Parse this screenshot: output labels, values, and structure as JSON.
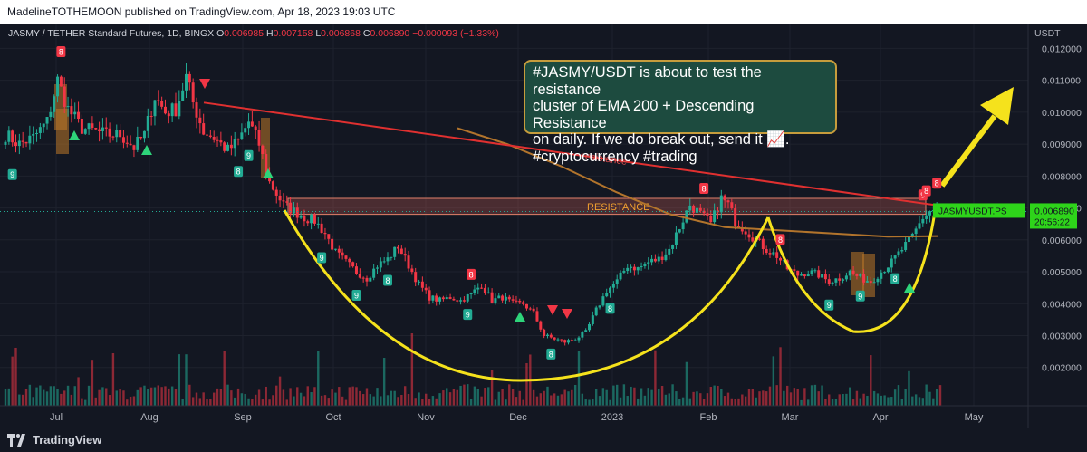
{
  "header": {
    "publisher_line": "MadelineTOTHEMOON published on TradingView.com, Apr 18, 2023 19:03 UTC"
  },
  "chart_data": {
    "type": "candlestick",
    "symbol_line": {
      "name": "JASMY / TETHER Standard Futures, 1D, BINGX",
      "o_label": "O",
      "o_value": "0.006985",
      "h_label": "H",
      "h_value": "0.007158",
      "l_label": "L",
      "l_value": "0.006868",
      "c_label": "C",
      "c_value": "0.006890",
      "change": "−0.000093 (−1.33%)"
    },
    "currency_label": "USDT",
    "y_ticks": [
      0.012,
      0.011,
      0.01,
      0.009,
      0.008,
      0.007,
      0.006,
      0.005,
      0.004,
      0.003,
      0.002
    ],
    "y_tick_labels": [
      "0.012000",
      "0.011000",
      "0.010000",
      "0.009000",
      "0.008000",
      "0.007000",
      "0.006000",
      "0.005000",
      "0.004000",
      "0.003000",
      "0.002000"
    ],
    "ylim": [
      0.0008,
      0.01275
    ],
    "x_ticks": [
      "Jul",
      "Aug",
      "Sep",
      "Oct",
      "Nov",
      "Dec",
      "2023",
      "Feb",
      "Mar",
      "Apr",
      "May"
    ],
    "price_label": {
      "ticker": "JASMYUSDT.PS",
      "value": "0.006890",
      "countdown": "20:56:22"
    },
    "annotations": {
      "resistance_line_label": "resistance",
      "resistance_zone_label": "RESISTANCE",
      "callout": [
        "#JASMY/USDT is about to test the resistance",
        "cluster of EMA 200 + Descending Resistance",
        "on daily. If we do break out, send it 📈.",
        "#cryptocurrency #trading"
      ]
    },
    "resistance_zone": {
      "from": 0.0068,
      "to": 0.0073
    },
    "td_labels": [
      {
        "x_index": 16,
        "text": "8",
        "side": "above",
        "color": "#f23645"
      },
      {
        "x_index": 2,
        "text": "9",
        "side": "below",
        "color": "#22ab94"
      },
      {
        "x_index": 67,
        "text": "8",
        "side": "below",
        "color": "#22ab94"
      },
      {
        "x_index": 70,
        "text": "9",
        "side": "below",
        "color": "#22ab94"
      },
      {
        "x_index": 91,
        "text": "9",
        "side": "below",
        "color": "#22ab94"
      },
      {
        "x_index": 101,
        "text": "9",
        "side": "below",
        "color": "#22ab94"
      },
      {
        "x_index": 110,
        "text": "8",
        "side": "below",
        "color": "#22ab94"
      },
      {
        "x_index": 133,
        "text": "9",
        "side": "below",
        "color": "#22ab94"
      },
      {
        "x_index": 134,
        "text": "8",
        "side": "above",
        "color": "#f23645"
      },
      {
        "x_index": 157,
        "text": "8",
        "side": "below",
        "color": "#22ab94"
      },
      {
        "x_index": 174,
        "text": "8",
        "side": "below",
        "color": "#22ab94"
      },
      {
        "x_index": 201,
        "text": "8",
        "side": "above",
        "color": "#f23645"
      },
      {
        "x_index": 223,
        "text": "8",
        "side": "above",
        "color": "#f23645"
      },
      {
        "x_index": 237,
        "text": "9",
        "side": "below",
        "color": "#22ab94"
      },
      {
        "x_index": 246,
        "text": "9",
        "side": "below",
        "color": "#22ab94"
      },
      {
        "x_index": 256,
        "text": "8",
        "side": "below",
        "color": "#22ab94"
      },
      {
        "x_index": 264,
        "text": "9",
        "side": "above",
        "color": "#f23645"
      },
      {
        "x_index": 265,
        "text": "8",
        "side": "above",
        "color": "#f23645"
      },
      {
        "x_index": 268,
        "text": "8",
        "side": "above",
        "color": "#f23645"
      }
    ],
    "colors": {
      "up": "#22ab94",
      "down": "#f23645",
      "ema": "#b2742c",
      "resistance_line": "#e03030",
      "curve": "#f5e21c",
      "arrow": "#f5e21c",
      "background": "#131722",
      "grid": "#1e222d"
    }
  }
}
